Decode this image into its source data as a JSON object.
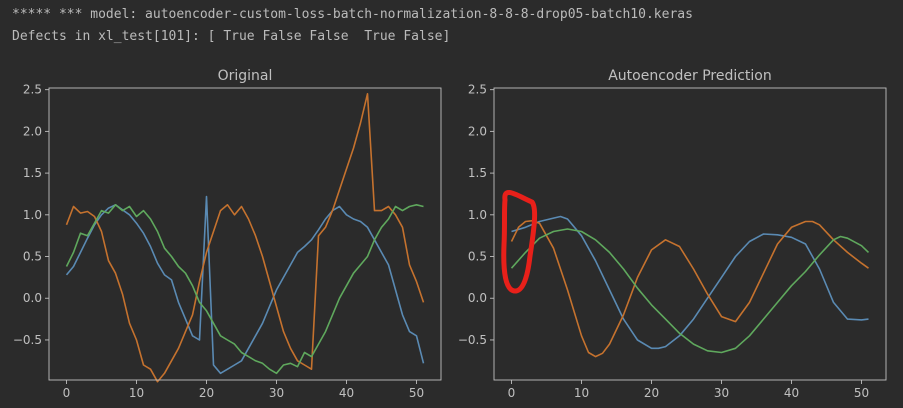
{
  "output": {
    "line1": "***** *** model: autoencoder-custom-loss-batch-normalization-8-8-8-drop05-batch10.keras",
    "line2": "Defects in xl_test[101]: [ True False False  True False]"
  },
  "colors": {
    "blue": "#5a8ab3",
    "orange": "#c5722e",
    "green": "#5fa85d",
    "annotation": "#e8201a",
    "axis": "#c0c0c0",
    "bg": "#2b2b2b"
  },
  "chart_data": [
    {
      "type": "line",
      "title": "Original",
      "xlim": [
        -2.5,
        53.5
      ],
      "ylim": [
        -0.98,
        2.52
      ],
      "xticks": [
        0,
        10,
        20,
        30,
        40,
        50
      ],
      "yticks": [
        -0.5,
        0.0,
        0.5,
        1.0,
        1.5,
        2.0,
        2.5
      ],
      "xticklabels": [
        "0",
        "10",
        "20",
        "30",
        "40",
        "50"
      ],
      "yticklabels": [
        "−0.5",
        "0.0",
        "0.5",
        "1.0",
        "1.5",
        "2.0",
        "2.5"
      ],
      "series": [
        {
          "color": "#5a8ab3",
          "x": [
            0,
            1,
            2,
            3,
            4,
            5,
            6,
            7,
            8,
            9,
            10,
            11,
            12,
            13,
            14,
            15,
            16,
            17,
            18,
            19,
            20,
            21,
            22,
            23,
            24,
            25,
            26,
            27,
            28,
            29,
            30,
            31,
            32,
            33,
            34,
            35,
            36,
            37,
            38,
            39,
            40,
            41,
            42,
            43,
            44,
            45,
            46,
            47,
            48,
            49,
            50,
            51
          ],
          "values": [
            0.28,
            0.38,
            0.55,
            0.72,
            0.88,
            1.0,
            1.08,
            1.12,
            1.06,
            1.0,
            0.9,
            0.78,
            0.62,
            0.42,
            0.28,
            0.22,
            -0.05,
            -0.25,
            -0.45,
            -0.5,
            1.22,
            -0.8,
            -0.9,
            -0.85,
            -0.8,
            -0.75,
            -0.6,
            -0.45,
            -0.3,
            -0.1,
            0.1,
            0.25,
            0.4,
            0.55,
            0.62,
            0.7,
            0.82,
            0.95,
            1.05,
            1.1,
            1.0,
            0.95,
            0.92,
            0.85,
            0.7,
            0.55,
            0.4,
            0.1,
            -0.2,
            -0.4,
            -0.45,
            -0.78
          ]
        },
        {
          "color": "#c5722e",
          "x": [
            0,
            1,
            2,
            3,
            4,
            5,
            6,
            7,
            8,
            9,
            10,
            11,
            12,
            13,
            14,
            15,
            16,
            17,
            18,
            19,
            20,
            21,
            22,
            23,
            24,
            25,
            26,
            27,
            28,
            29,
            30,
            31,
            32,
            33,
            34,
            35,
            36,
            37,
            38,
            39,
            40,
            41,
            42,
            43,
            44,
            45,
            46,
            47,
            48,
            49,
            50,
            51
          ],
          "values": [
            0.88,
            1.1,
            1.02,
            1.04,
            0.98,
            0.8,
            0.45,
            0.3,
            0.05,
            -0.3,
            -0.5,
            -0.8,
            -0.85,
            -1.0,
            -0.9,
            -0.75,
            -0.6,
            -0.4,
            -0.2,
            0.2,
            0.55,
            0.8,
            1.05,
            1.12,
            1.0,
            1.1,
            0.95,
            0.75,
            0.5,
            0.2,
            -0.1,
            -0.4,
            -0.6,
            -0.75,
            -0.8,
            -0.85,
            0.75,
            0.85,
            1.05,
            1.3,
            1.55,
            1.8,
            2.1,
            2.45,
            1.05,
            1.05,
            1.1,
            1.0,
            0.85,
            0.4,
            0.2,
            -0.05
          ]
        },
        {
          "color": "#5fa85d",
          "x": [
            0,
            1,
            2,
            3,
            4,
            5,
            6,
            7,
            8,
            9,
            10,
            11,
            12,
            13,
            14,
            15,
            16,
            17,
            18,
            19,
            20,
            21,
            22,
            23,
            24,
            25,
            26,
            27,
            28,
            29,
            30,
            31,
            32,
            33,
            34,
            35,
            36,
            37,
            38,
            39,
            40,
            41,
            42,
            43,
            44,
            45,
            46,
            47,
            48,
            49,
            50,
            51
          ],
          "values": [
            0.38,
            0.55,
            0.78,
            0.75,
            0.9,
            1.05,
            1.02,
            1.12,
            1.05,
            1.1,
            0.98,
            1.05,
            0.95,
            0.8,
            0.6,
            0.5,
            0.38,
            0.3,
            0.15,
            -0.05,
            -0.15,
            -0.3,
            -0.45,
            -0.5,
            -0.55,
            -0.65,
            -0.7,
            -0.75,
            -0.78,
            -0.85,
            -0.9,
            -0.8,
            -0.78,
            -0.82,
            -0.65,
            -0.7,
            -0.55,
            -0.4,
            -0.2,
            0.0,
            0.15,
            0.3,
            0.4,
            0.5,
            0.7,
            0.85,
            0.95,
            1.1,
            1.05,
            1.1,
            1.12,
            1.1
          ]
        }
      ]
    },
    {
      "type": "line",
      "title": "Autoencoder Prediction",
      "xlim": [
        -2.5,
        53.5
      ],
      "ylim": [
        -0.98,
        2.52
      ],
      "xticks": [
        0,
        10,
        20,
        30,
        40,
        50
      ],
      "yticks": [
        -0.5,
        0.0,
        0.5,
        1.0,
        1.5,
        2.0,
        2.5
      ],
      "xticklabels": [
        "0",
        "10",
        "20",
        "30",
        "40",
        "50"
      ],
      "yticklabels": [
        "−0.5",
        "0.0",
        "0.5",
        "1.0",
        "1.5",
        "2.0",
        "2.5"
      ],
      "series": [
        {
          "color": "#5a8ab3",
          "x": [
            0,
            2,
            4,
            6,
            7,
            8,
            10,
            12,
            14,
            16,
            18,
            20,
            21,
            22,
            24,
            26,
            28,
            30,
            32,
            34,
            36,
            38,
            40,
            42,
            44,
            46,
            48,
            50,
            51
          ],
          "values": [
            0.8,
            0.85,
            0.92,
            0.96,
            0.98,
            0.95,
            0.75,
            0.45,
            0.1,
            -0.25,
            -0.5,
            -0.6,
            -0.6,
            -0.58,
            -0.45,
            -0.25,
            0.0,
            0.25,
            0.5,
            0.68,
            0.77,
            0.76,
            0.73,
            0.65,
            0.35,
            -0.05,
            -0.25,
            -0.26,
            -0.25
          ]
        },
        {
          "color": "#c5722e",
          "x": [
            0,
            1,
            2,
            3,
            4,
            6,
            8,
            10,
            11,
            12,
            13,
            14,
            16,
            18,
            20,
            22,
            24,
            26,
            28,
            30,
            32,
            34,
            36,
            38,
            40,
            42,
            43,
            44,
            46,
            48,
            50,
            51
          ],
          "values": [
            0.68,
            0.85,
            0.92,
            0.93,
            0.9,
            0.6,
            0.1,
            -0.45,
            -0.65,
            -0.7,
            -0.66,
            -0.55,
            -0.2,
            0.25,
            0.58,
            0.7,
            0.62,
            0.35,
            0.05,
            -0.22,
            -0.28,
            -0.05,
            0.3,
            0.65,
            0.85,
            0.92,
            0.92,
            0.88,
            0.7,
            0.55,
            0.42,
            0.36
          ]
        },
        {
          "color": "#5fa85d",
          "x": [
            0,
            2,
            4,
            6,
            8,
            10,
            12,
            14,
            16,
            18,
            20,
            22,
            24,
            26,
            28,
            30,
            32,
            34,
            36,
            38,
            40,
            42,
            44,
            46,
            47,
            48,
            50,
            51
          ],
          "values": [
            0.36,
            0.55,
            0.72,
            0.8,
            0.83,
            0.8,
            0.7,
            0.55,
            0.35,
            0.12,
            -0.08,
            -0.25,
            -0.42,
            -0.55,
            -0.63,
            -0.65,
            -0.6,
            -0.45,
            -0.25,
            -0.05,
            0.15,
            0.32,
            0.52,
            0.7,
            0.74,
            0.72,
            0.63,
            0.55
          ]
        }
      ]
    }
  ]
}
